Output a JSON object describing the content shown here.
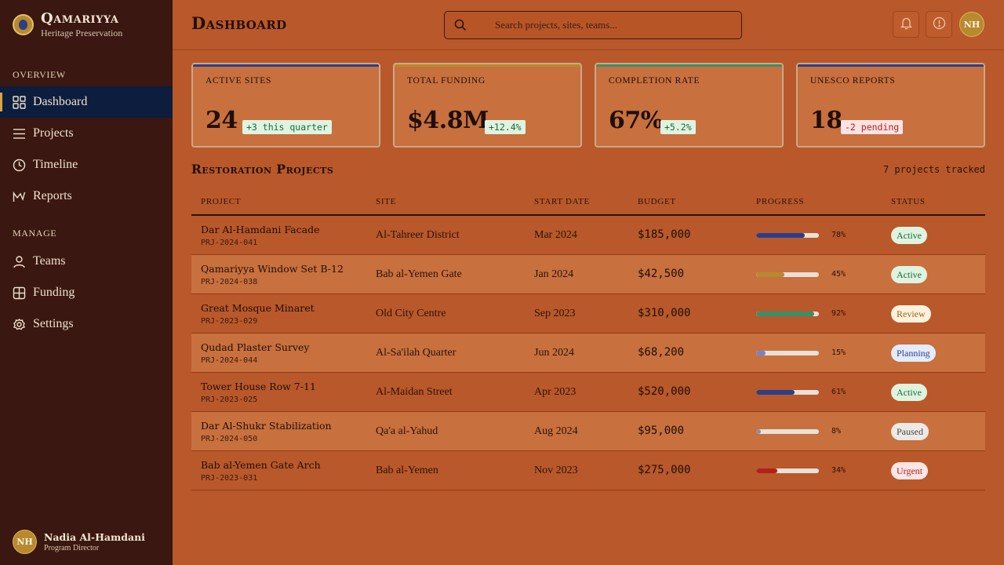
{
  "app": {
    "name": "Qamariyya",
    "subtitle": "Heritage Preservation"
  },
  "sidebar": {
    "overview_title": "OVERVIEW",
    "manage_title": "MANAGE",
    "overview_items": [
      {
        "label": "Dashboard",
        "icon": "grid-icon",
        "active": true
      },
      {
        "label": "Projects",
        "icon": "list-icon"
      },
      {
        "label": "Timeline",
        "icon": "clock-icon"
      },
      {
        "label": "Reports",
        "icon": "chart-icon"
      }
    ],
    "manage_items": [
      {
        "label": "Teams",
        "icon": "user-icon"
      },
      {
        "label": "Funding",
        "icon": "funding-icon"
      },
      {
        "label": "Settings",
        "icon": "gear-icon"
      }
    ],
    "user": {
      "initials": "NH",
      "name": "Nadia Al-Hamdani",
      "role": "Program Director"
    }
  },
  "header": {
    "title": "Dashboard",
    "search_placeholder": "Search projects, sites, teams...",
    "avatar_initials": "NH"
  },
  "stats": [
    {
      "label": "ACTIVE SITES",
      "value": "24",
      "delta": "+3 this quarter",
      "trend": "up",
      "accent": "#2b3e8c"
    },
    {
      "label": "TOTAL FUNDING",
      "value": "$4.8M",
      "delta": "+12.4%",
      "trend": "up",
      "accent": "#b8892e"
    },
    {
      "label": "COMPLETION RATE",
      "value": "67%",
      "delta": "+5.2%",
      "trend": "up",
      "accent": "#3a8f6a"
    },
    {
      "label": "UNESCO REPORTS",
      "value": "18",
      "delta": "-2 pending",
      "trend": "down",
      "accent": "#2b3e8c"
    }
  ],
  "projects": {
    "title": "Restoration Projects",
    "count_label": "7 projects tracked",
    "columns": [
      "PROJECT",
      "SITE",
      "START DATE",
      "BUDGET",
      "PROGRESS",
      "STATUS"
    ],
    "rows": [
      {
        "name": "Dar Al-Hamdani Facade",
        "id": "PRJ-2024-041",
        "site": "Al-Tahreer District",
        "start": "Mar 2024",
        "budget": "$185,000",
        "progress": 78,
        "progress_label": "78%",
        "status": "Active",
        "bar_color": "#2b3e8c"
      },
      {
        "name": "Qamariyya Window Set B-12",
        "id": "PRJ-2024-038",
        "site": "Bab al-Yemen Gate",
        "start": "Jan 2024",
        "budget": "$42,500",
        "progress": 45,
        "progress_label": "45%",
        "status": "Active",
        "bar_color": "#b8892e"
      },
      {
        "name": "Great Mosque Minaret",
        "id": "PRJ-2023-029",
        "site": "Old City Centre",
        "start": "Sep 2023",
        "budget": "$310,000",
        "progress": 92,
        "progress_label": "92%",
        "status": "Review",
        "bar_color": "#3a8f6a"
      },
      {
        "name": "Qudad Plaster Survey",
        "id": "PRJ-2024-044",
        "site": "Al-Sa'ilah Quarter",
        "start": "Jun 2024",
        "budget": "$68,200",
        "progress": 15,
        "progress_label": "15%",
        "status": "Planning",
        "bar_color": "#6d86cf"
      },
      {
        "name": "Tower House Row 7-11",
        "id": "PRJ-2023-025",
        "site": "Al-Maidan Street",
        "start": "Apr 2023",
        "budget": "$520,000",
        "progress": 61,
        "progress_label": "61%",
        "status": "Active",
        "bar_color": "#2b3e8c"
      },
      {
        "name": "Dar Al-Shukr Stabilization",
        "id": "PRJ-2024-050",
        "site": "Qa'a al-Yahud",
        "start": "Aug 2024",
        "budget": "$95,000",
        "progress": 8,
        "progress_label": "8%",
        "status": "Paused",
        "bar_color": "#8a8f99"
      },
      {
        "name": "Bab al-Yemen Gate Arch",
        "id": "PRJ-2023-031",
        "site": "Bab al-Yemen",
        "start": "Nov 2023",
        "budget": "$275,000",
        "progress": 34,
        "progress_label": "34%",
        "status": "Urgent",
        "bar_color": "#b3211b"
      }
    ]
  },
  "status_styles": {
    "Active": {
      "bg": "#dff3e1",
      "fg": "#1b6a38"
    },
    "Review": {
      "bg": "#fdf2dd",
      "fg": "#a06312"
    },
    "Planning": {
      "bg": "#e4ebfa",
      "fg": "#2b3e8c"
    },
    "Paused": {
      "bg": "#ece9e6",
      "fg": "#4a4744"
    },
    "Urgent": {
      "bg": "#fbe6e6",
      "fg": "#b3211b"
    }
  }
}
